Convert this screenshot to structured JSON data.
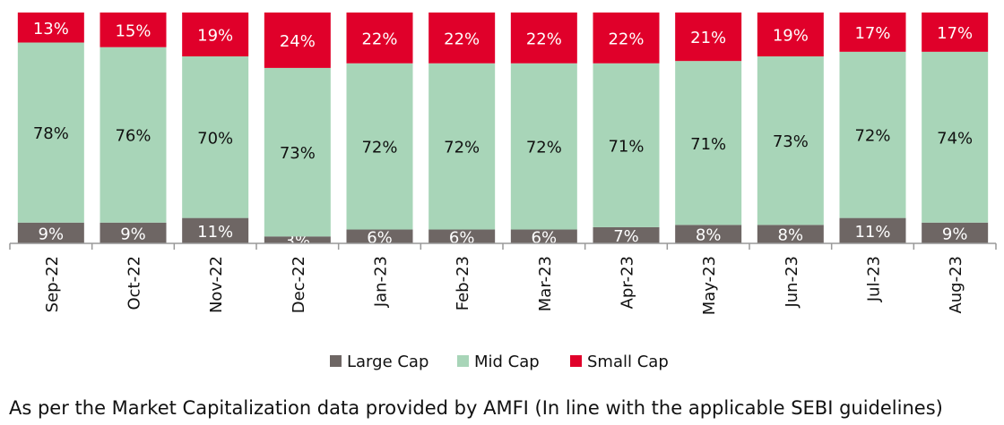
{
  "chart_data": {
    "type": "bar",
    "stacked": true,
    "categories": [
      "Sep-22",
      "Oct-22",
      "Nov-22",
      "Dec-22",
      "Jan-23",
      "Feb-23",
      "Mar-23",
      "Apr-23",
      "May-23",
      "Jun-23",
      "Jul-23",
      "Aug-23"
    ],
    "series": [
      {
        "name": "Large Cap",
        "color": "#6e6664",
        "values": [
          9,
          9,
          11,
          3,
          6,
          6,
          6,
          7,
          8,
          8,
          11,
          9
        ],
        "labels": [
          "9%",
          "9%",
          "11%",
          "3%",
          "6%",
          "6%",
          "6%",
          "7%",
          "8%",
          "8%",
          "11%",
          "9%"
        ]
      },
      {
        "name": "Mid Cap",
        "color": "#a8d5b8",
        "values": [
          78,
          76,
          70,
          73,
          72,
          72,
          72,
          71,
          71,
          73,
          72,
          74
        ],
        "labels": [
          "78%",
          "76%",
          "70%",
          "73%",
          "72%",
          "72%",
          "72%",
          "71%",
          "71%",
          "73%",
          "72%",
          "74%"
        ]
      },
      {
        "name": "Small Cap",
        "color": "#e0002a",
        "values": [
          13,
          15,
          19,
          24,
          22,
          22,
          22,
          22,
          21,
          19,
          17,
          17
        ],
        "labels": [
          "13%",
          "15%",
          "19%",
          "24%",
          "22%",
          "22%",
          "22%",
          "22%",
          "21%",
          "19%",
          "17%",
          "17%"
        ]
      }
    ],
    "ylim": [
      0,
      100
    ],
    "legend_position": "bottom",
    "grid": false
  },
  "footnote": "As per the Market Capitalization data provided by AMFI (In line with the applicable SEBI guidelines)"
}
